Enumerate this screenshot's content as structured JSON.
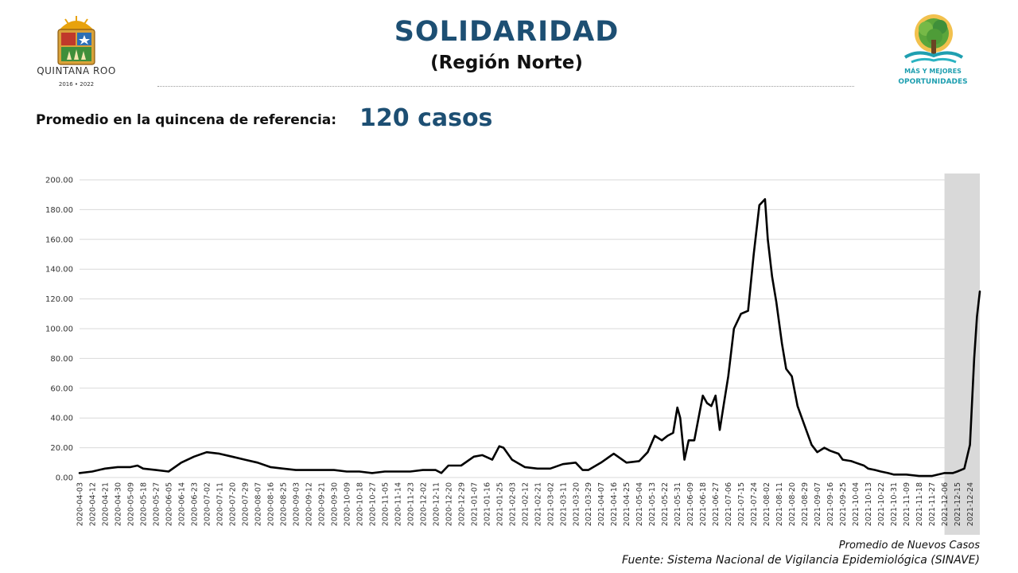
{
  "header": {
    "title": "SOLIDARIDAD",
    "subtitle": "(Región Norte)",
    "reference_label": "Promedio en la quincena de referencia:",
    "reference_value": "120 casos"
  },
  "logos": {
    "left": {
      "name": "QUINTANA ROO",
      "years": "2016 • 2022",
      "icon": "coat-of-arms-icon"
    },
    "right": {
      "line1": "MÁS Y MEJORES",
      "line2": "OPORTUNIDADES",
      "icon": "tree-icon"
    }
  },
  "footer": {
    "series_label": "Promedio de Nuevos Casos",
    "source": "Fuente: Sistema Nacional de Vigilancia Epidemiológica (SINAVE)"
  },
  "colors": {
    "title": "#1d4f73",
    "line": "#000000",
    "grid": "#d9d9d9",
    "highlight": "#d9d9d9",
    "logo_teal": "#1f9fb0",
    "logo_green": "#5ba63b"
  },
  "chart_data": {
    "type": "line",
    "ylim": [
      0,
      200
    ],
    "yticks": [
      "0.00",
      "20.00",
      "40.00",
      "60.00",
      "80.00",
      "100.00",
      "120.00",
      "140.00",
      "160.00",
      "180.00",
      "200.00"
    ],
    "xticks": [
      "2020-04-03",
      "2020-04-12",
      "2020-04-21",
      "2020-04-30",
      "2020-05-09",
      "2020-05-18",
      "2020-05-27",
      "2020-06-05",
      "2020-06-14",
      "2020-06-23",
      "2020-07-02",
      "2020-07-11",
      "2020-07-20",
      "2020-07-29",
      "2020-08-07",
      "2020-08-16",
      "2020-08-25",
      "2020-09-03",
      "2020-09-12",
      "2020-09-21",
      "2020-09-30",
      "2020-10-09",
      "2020-10-18",
      "2020-10-27",
      "2020-11-05",
      "2020-11-14",
      "2020-11-23",
      "2020-12-02",
      "2020-12-11",
      "2020-12-20",
      "2020-12-29",
      "2021-01-07",
      "2021-01-16",
      "2021-01-25",
      "2021-02-03",
      "2021-02-12",
      "2021-02-21",
      "2021-03-02",
      "2021-03-11",
      "2021-03-20",
      "2021-03-29",
      "2021-04-07",
      "2021-04-16",
      "2021-04-25",
      "2021-05-04",
      "2021-05-13",
      "2021-05-22",
      "2021-05-31",
      "2021-06-09",
      "2021-06-18",
      "2021-06-27",
      "2021-07-06",
      "2021-07-15",
      "2021-07-24",
      "2021-08-02",
      "2021-08-11",
      "2021-08-20",
      "2021-08-29",
      "2021-09-07",
      "2021-09-16",
      "2021-09-25",
      "2021-10-04",
      "2021-10-13",
      "2021-10-22",
      "2021-10-31",
      "2021-11-09",
      "2021-11-18",
      "2021-11-27",
      "2021-12-06",
      "2021-12-15",
      "2021-12-24"
    ],
    "highlight_range": [
      "2021-12-06",
      "2021-12-31"
    ],
    "series": [
      {
        "x": [
          "2020-04-03",
          "2020-04-12",
          "2020-04-21",
          "2020-04-30",
          "2020-05-09",
          "2020-05-14",
          "2020-05-18",
          "2020-05-27",
          "2020-06-05",
          "2020-06-14",
          "2020-06-23",
          "2020-07-02",
          "2020-07-11",
          "2020-07-20",
          "2020-07-29",
          "2020-08-07",
          "2020-08-16",
          "2020-08-25",
          "2020-09-03",
          "2020-09-12",
          "2020-09-21",
          "2020-09-30",
          "2020-10-09",
          "2020-10-18",
          "2020-10-27",
          "2020-11-05",
          "2020-11-14",
          "2020-11-23",
          "2020-12-02",
          "2020-12-06",
          "2020-12-11",
          "2020-12-15",
          "2020-12-20",
          "2020-12-29",
          "2021-01-07",
          "2021-01-13",
          "2021-01-20",
          "2021-01-25",
          "2021-01-28",
          "2021-02-03",
          "2021-02-12",
          "2021-02-21",
          "2021-03-02",
          "2021-03-11",
          "2021-03-20",
          "2021-03-25",
          "2021-03-29",
          "2021-04-07",
          "2021-04-16",
          "2021-04-25",
          "2021-05-04",
          "2021-05-10",
          "2021-05-15",
          "2021-05-20",
          "2021-05-24",
          "2021-05-28",
          "2021-05-31",
          "2021-06-02",
          "2021-06-05",
          "2021-06-08",
          "2021-06-12",
          "2021-06-16",
          "2021-06-18",
          "2021-06-21",
          "2021-06-24",
          "2021-06-27",
          "2021-06-30",
          "2021-07-03",
          "2021-07-06",
          "2021-07-10",
          "2021-07-15",
          "2021-07-20",
          "2021-07-24",
          "2021-07-28",
          "2021-08-01",
          "2021-08-03",
          "2021-08-06",
          "2021-08-09",
          "2021-08-13",
          "2021-08-16",
          "2021-08-20",
          "2021-08-24",
          "2021-08-29",
          "2021-09-03",
          "2021-09-07",
          "2021-09-12",
          "2021-09-16",
          "2021-09-22",
          "2021-09-25",
          "2021-10-01",
          "2021-10-04",
          "2021-10-10",
          "2021-10-13",
          "2021-10-18",
          "2021-10-22",
          "2021-10-27",
          "2021-10-31",
          "2021-11-09",
          "2021-11-18",
          "2021-11-27",
          "2021-12-06",
          "2021-12-12",
          "2021-12-15",
          "2021-12-20",
          "2021-12-24",
          "2021-12-27",
          "2021-12-29",
          "2021-12-31"
        ],
        "y": [
          3,
          4,
          6,
          7,
          7,
          8,
          6,
          5,
          4,
          10,
          14,
          17,
          16,
          14,
          12,
          10,
          7,
          6,
          5,
          5,
          5,
          5,
          4,
          4,
          3,
          4,
          4,
          4,
          5,
          5,
          5,
          3,
          8,
          8,
          14,
          15,
          12,
          21,
          20,
          12,
          7,
          6,
          6,
          9,
          10,
          5,
          5,
          10,
          16,
          10,
          11,
          17,
          28,
          25,
          28,
          30,
          47,
          40,
          12,
          25,
          25,
          45,
          55,
          50,
          48,
          55,
          32,
          50,
          68,
          100,
          110,
          112,
          150,
          183,
          187,
          160,
          135,
          118,
          90,
          73,
          68,
          48,
          35,
          22,
          17,
          20,
          18,
          16,
          12,
          11,
          10,
          8,
          6,
          5,
          4,
          3,
          2,
          2,
          1,
          1,
          3,
          3,
          4,
          6,
          22,
          80,
          108,
          125
        ]
      }
    ]
  }
}
